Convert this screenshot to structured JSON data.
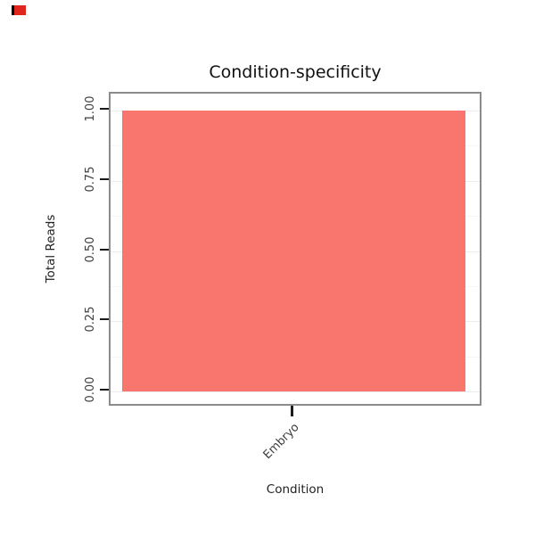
{
  "chart_data": {
    "type": "bar",
    "title": "Condition-specificity",
    "xlabel": "Condition",
    "ylabel": "Total Reads",
    "categories": [
      "Embryo"
    ],
    "values": [
      1.0
    ],
    "ylim": [
      0,
      1
    ],
    "yticks": [
      0.0,
      0.25,
      0.5,
      0.75,
      1.0
    ],
    "ytick_labels": [
      "0.00",
      "0.25",
      "0.50",
      "0.75",
      "1.00"
    ],
    "bar_color": "#F8766D",
    "panel_border_color": "#8b8b8b",
    "grid": "faint horizontal major and minor gridlines",
    "legend": "none"
  },
  "decorations": {
    "corner_mark_color": "#e0261c"
  }
}
